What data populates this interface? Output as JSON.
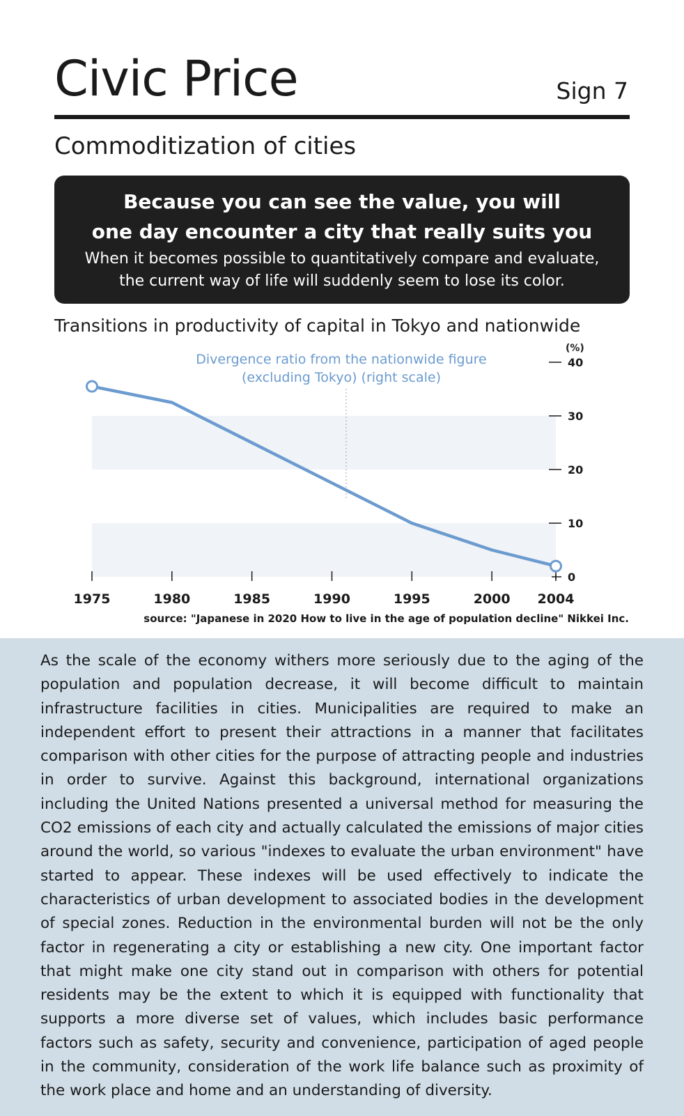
{
  "header": {
    "title": "Civic Price",
    "sign": "Sign 7",
    "subtitle": "Commoditization of cities"
  },
  "callout": {
    "headline": "Because you can see the value, you will\none day encounter a city that really suits you",
    "body": "When it becomes possible to quantitatively compare and evaluate,\nthe current way of life will suddenly seem to lose its color."
  },
  "chart_data": {
    "type": "line",
    "title": "Transitions in productivity of capital in Tokyo and nationwide",
    "annotation": "Divergence ratio from the nationwide figure\n(excluding Tokyo) (right scale)",
    "y_unit_label": "(%)",
    "x_ticks": [
      "1975",
      "1980",
      "1985",
      "1990",
      "1995",
      "2000",
      "2004"
    ],
    "y_ticks": [
      0,
      10,
      20,
      30,
      40
    ],
    "ylim": [
      0,
      40
    ],
    "xlim": [
      1975,
      2004
    ],
    "y_axis_position": "right",
    "series": [
      {
        "x": [
          1975,
          1980,
          1995,
          2000,
          2004
        ],
        "y": [
          35.5,
          32.5,
          10,
          5,
          2
        ],
        "color": "#6b9bcf"
      }
    ],
    "band_color": "#f0f3f7"
  },
  "source": "source: \"Japanese in 2020 How to live in the age of population decline\" Nikkei Inc.",
  "body": "As the scale of the economy withers more seriously due to the aging of the population and population decrease, it will become difficult to maintain infrastructure facilities in cities. Municipalities are required to make an independent effort to present their attractions in a manner that facilitates comparison with other cities for the purpose of attracting people and industries in order to survive. Against this background, international organizations including the United Nations presented a universal method for measuring the CO2 emissions of each city and actually calculated the emissions of major cities around the world, so various \"indexes to evaluate the urban environment\" have started to appear. These indexes will be used effectively to indicate the characteristics of urban development to associated bodies in the development of special zones. Reduction in the environmental burden will not be the only factor in regenerating a city or establishing a new city. One important factor that might make one city stand out in comparison with others for potential residents may be the extent to which it is equipped with functionality that supports a more diverse set of values, which includes basic performance factors such as safety, security and convenience, participation of aged people in the community, consideration of the work life balance such as proximity of the work place and home and an understanding of diversity."
}
